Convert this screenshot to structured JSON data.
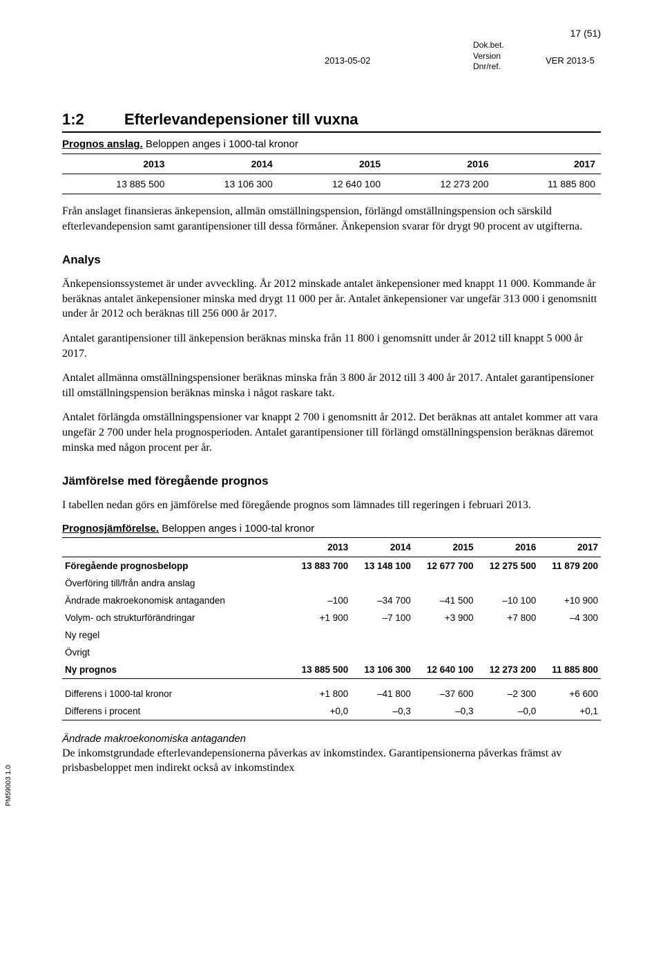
{
  "header": {
    "page_count": "17 (51)",
    "date": "2013-05-02",
    "dokbet": "Dok.bet.",
    "version": "Version",
    "dnr": "Dnr/ref.",
    "ver": "VER 2013-5"
  },
  "section": {
    "num": "1:2",
    "title": "Efterlevandepensioner till vuxna"
  },
  "table1": {
    "caption_bold": "Prognos anslag.",
    "caption_tail": " Beloppen anges i 1000-tal kronor",
    "columns": [
      "2013",
      "2014",
      "2015",
      "2016",
      "2017"
    ],
    "row": [
      "13 885 500",
      "13 106 300",
      "12 640 100",
      "12 273 200",
      "11 885 800"
    ]
  },
  "para1": "Från anslaget finansieras änkepension, allmän omställningspension, förlängd omställningspension och särskild efterlevandepension samt garantipensioner till dessa förmåner. Änkepension svarar för drygt 90 procent av utgifterna.",
  "h_analys": "Analys",
  "para2": "Änkepensionssystemet är under avveckling. År 2012 minskade antalet änkepensioner med knappt 11 000. Kommande år beräknas antalet änkepensioner minska med drygt 11 000 per år. Antalet änkepensioner var ungefär 313 000 i genomsnitt under år 2012 och beräknas till 256 000 år 2017.",
  "para3": "Antalet garantipensioner till änkepension beräknas minska från 11 800 i genomsnitt under år 2012 till knappt 5 000 år 2017.",
  "para4": "Antalet allmänna omställningspensioner beräknas minska från 3 800 år 2012 till 3 400 år 2017. Antalet garantipensioner till omställningspension beräknas minska i något raskare takt.",
  "para5": "Antalet förlängda omställningspensioner var knappt 2 700 i genomsnitt år 2012. Det beräknas att antalet kommer att vara ungefär 2 700 under hela prognosperioden. Antalet garantipensioner till förlängd omställningspension beräknas däremot minska med någon procent per år.",
  "h_jamfor": "Jämförelse med föregående prognos",
  "para6": "I tabellen nedan görs en jämförelse med föregående prognos som lämnades till regeringen i februari 2013.",
  "table2": {
    "caption_bold": "Prognosjämförelse.",
    "caption_tail": " Beloppen anges i 1000-tal kronor",
    "columns": [
      "",
      "2013",
      "2014",
      "2015",
      "2016",
      "2017"
    ],
    "rows": [
      {
        "lead": "Föregående prognosbelopp",
        "v": [
          "13 883 700",
          "13 148 100",
          "12 677 700",
          "12 275 500",
          "11 879 200"
        ],
        "bold": true
      },
      {
        "lead": "Överföring till/från andra anslag",
        "v": [
          "",
          "",
          "",
          "",
          ""
        ]
      },
      {
        "lead": "Ändrade makroekonomisk antaganden",
        "v": [
          "–100",
          "–34 700",
          "–41 500",
          "–10 100",
          "+10 900"
        ]
      },
      {
        "lead": "Volym- och strukturförändringar",
        "v": [
          "+1 900",
          "–7 100",
          "+3 900",
          "+7 800",
          "–4 300"
        ]
      },
      {
        "lead": "Ny regel",
        "v": [
          "",
          "",
          "",
          "",
          ""
        ]
      },
      {
        "lead": "Övrigt",
        "v": [
          "",
          "",
          "",
          "",
          ""
        ]
      },
      {
        "lead": "Ny prognos",
        "v": [
          "13 885 500",
          "13 106 300",
          "12 640 100",
          "12 273 200",
          "11 885 800"
        ],
        "bold": true,
        "rule": true
      },
      {
        "lead": "Differens i 1000-tal kronor",
        "v": [
          "+1 800",
          "–41 800",
          "–37 600",
          "–2 300",
          "+6 600"
        ],
        "spacer": true
      },
      {
        "lead": "Differens i procent",
        "v": [
          "+0,0",
          "–0,3",
          "–0,3",
          "–0,0",
          "+0,1"
        ],
        "rule": true
      }
    ]
  },
  "italic_head": "Ändrade makroekonomiska antaganden",
  "para7": "De inkomstgrundade efterlevandepensionerna påverkas av inkomstindex. Garantipensionerna påverkas främst av prisbasbeloppet men indirekt också av inkomstindex",
  "footer_code": "PM59003 1.0"
}
